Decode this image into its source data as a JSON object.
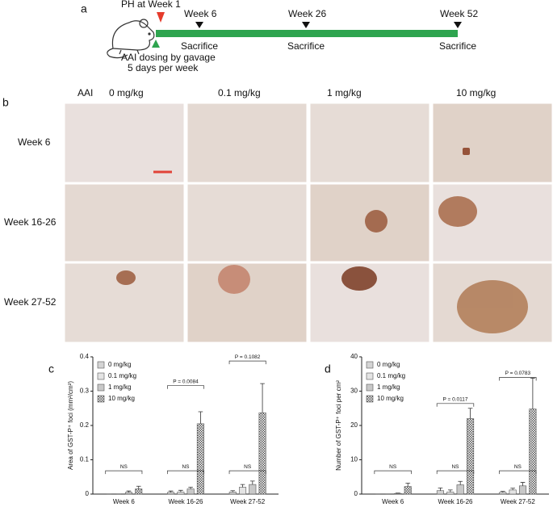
{
  "timeline": {
    "label": "a",
    "ph": "PH at Week 1",
    "weeks": [
      "Week 6",
      "Week 26",
      "Week 52"
    ],
    "sacrifice": [
      "Sacrifice",
      "Sacrifice",
      "Sacrifice"
    ],
    "dosing": [
      "AAI dosing by gavage",
      "5 days per week"
    ]
  },
  "histology": {
    "label": "b",
    "compound": "AAI",
    "doses": [
      "0 mg/kg",
      "0.1 mg/kg",
      "1 mg/kg",
      "10 mg/kg"
    ],
    "rows": [
      "Week 6",
      "Week 16-26",
      "Week 27-52"
    ]
  },
  "chart_data": [
    {
      "type": "bar",
      "label": "c",
      "y_label": "Area of GST-P⁺ foci (mm²/cm²)",
      "categories": [
        "Week 6",
        "Week 16-26",
        "Week 27-52"
      ],
      "series": [
        {
          "name": "0 mg/kg",
          "color": "#d4d4d4",
          "values": [
            0,
            0.005,
            0.006
          ],
          "errors": [
            0,
            0.004,
            0.004
          ]
        },
        {
          "name": "0.1 mg/kg",
          "color": "#e4e4e4",
          "values": [
            0,
            0.006,
            0.02
          ],
          "errors": [
            0,
            0.005,
            0.008
          ]
        },
        {
          "name": "1 mg/kg",
          "color": "#c8c8c8",
          "values": [
            0.005,
            0.015,
            0.028
          ],
          "errors": [
            0.004,
            0.005,
            0.01
          ]
        },
        {
          "name": "10 mg/kg",
          "color": "#8c8c8c",
          "pattern": "checker",
          "values": [
            0.015,
            0.205,
            0.237
          ],
          "errors": [
            0.008,
            0.035,
            0.085
          ]
        }
      ],
      "ylim": [
        0,
        0.4
      ],
      "yticks": [
        0,
        0.1,
        0.2,
        0.3,
        0.4
      ],
      "annotations": [
        "NS",
        "NS",
        "NS",
        "P = 0.0084",
        "P = 0.1082"
      ]
    },
    {
      "type": "bar",
      "label": "d",
      "y_label": "Number of GST-P⁺ foci per cm²",
      "categories": [
        "Week 6",
        "Week 16-26",
        "Week 27-52"
      ],
      "series": [
        {
          "name": "0 mg/kg",
          "color": "#d4d4d4",
          "values": [
            0,
            1,
            0.5
          ],
          "errors": [
            0,
            0.8,
            0.3
          ]
        },
        {
          "name": "0.1 mg/kg",
          "color": "#e4e4e4",
          "values": [
            0,
            0.6,
            1.2
          ],
          "errors": [
            0,
            0.6,
            0.5
          ]
        },
        {
          "name": "1 mg/kg",
          "color": "#c8c8c8",
          "values": [
            0.2,
            2.7,
            2.4
          ],
          "errors": [
            0.1,
            1,
            1
          ]
        },
        {
          "name": "10 mg/kg",
          "color": "#8c8c8c",
          "pattern": "checker",
          "values": [
            2.2,
            22,
            24.8
          ],
          "errors": [
            1,
            3,
            9
          ]
        }
      ],
      "ylim": [
        0,
        40
      ],
      "yticks": [
        0,
        10,
        20,
        30,
        40
      ],
      "annotations": [
        "NS",
        "NS",
        "NS",
        "P = 0.0117",
        "P = 0.0783"
      ]
    }
  ]
}
